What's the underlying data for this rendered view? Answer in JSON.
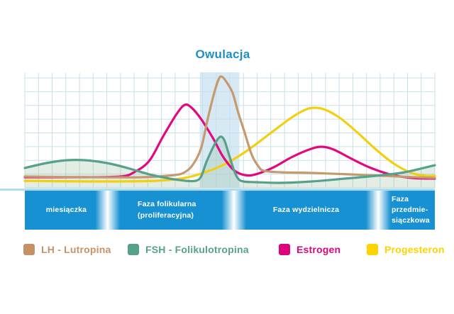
{
  "title": "Owulacja",
  "accent_blue": "#1e8ec8",
  "chart_data": {
    "type": "line",
    "title": "Owulacja",
    "xlabel": "",
    "ylabel": "",
    "x_unit": "cycle day (axis unlabeled in figure)",
    "y_unit": "relative hormone level (axis unlabeled in figure)",
    "x_range": [
      0,
      30
    ],
    "y_range": [
      0,
      100
    ],
    "grid": true,
    "grid_color": "#c8dfe8",
    "band_color": "#d8e9f6",
    "ovulation_band": {
      "x0": 12.8,
      "x1": 15.7,
      "label": "Owulacja"
    },
    "legend_position": "bottom",
    "series": [
      {
        "name": "LH - Lutropina",
        "color": "#c49a6e",
        "points": [
          [
            0,
            9.8
          ],
          [
            4.4,
            9.2
          ],
          [
            8.6,
            9.2
          ],
          [
            10.9,
            11
          ],
          [
            11.7,
            13.5
          ],
          [
            12.3,
            20.2
          ],
          [
            12.9,
            34.4
          ],
          [
            13.4,
            60.7
          ],
          [
            13.9,
            84
          ],
          [
            14.2,
            94.5
          ],
          [
            14.4,
            96.3
          ],
          [
            14.7,
            92.6
          ],
          [
            15.2,
            82.2
          ],
          [
            15.6,
            65.6
          ],
          [
            16.1,
            47.2
          ],
          [
            16.6,
            28.8
          ],
          [
            17.1,
            18.4
          ],
          [
            17.5,
            14.7
          ],
          [
            18.7,
            13.5
          ],
          [
            21,
            12.9
          ],
          [
            23.6,
            11.7
          ],
          [
            26.2,
            10.4
          ],
          [
            28.5,
            9.2
          ],
          [
            30,
            8.6
          ]
        ]
      },
      {
        "name": "FSH - Folikulotropina",
        "color": "#57a18b",
        "area_fill": true,
        "fill_color": "#8cb58a",
        "fill_opacity": 0.24,
        "points": [
          [
            0,
            17.2
          ],
          [
            1.6,
            21.5
          ],
          [
            3.1,
            23.9
          ],
          [
            4.4,
            23.9
          ],
          [
            6,
            21.5
          ],
          [
            7.5,
            17.2
          ],
          [
            9.1,
            11.7
          ],
          [
            10.6,
            8
          ],
          [
            11.8,
            6.1
          ],
          [
            12.5,
            6.1
          ],
          [
            12.9,
            9.8
          ],
          [
            13.3,
            22.7
          ],
          [
            13.9,
            38
          ],
          [
            14.3,
            44.2
          ],
          [
            14.6,
            41.1
          ],
          [
            14.9,
            30.1
          ],
          [
            15.3,
            15.3
          ],
          [
            15.6,
            8
          ],
          [
            16,
            5.5
          ],
          [
            16.9,
            4.9
          ],
          [
            18.7,
            4.3
          ],
          [
            21,
            5.5
          ],
          [
            23.4,
            8
          ],
          [
            25.7,
            10.4
          ],
          [
            27.8,
            13.5
          ],
          [
            30,
            19.6
          ]
        ]
      },
      {
        "name": "Estrogen",
        "color": "#e3087e",
        "points": [
          [
            0,
            9.2
          ],
          [
            4.4,
            9.2
          ],
          [
            7,
            9.8
          ],
          [
            8,
            13.5
          ],
          [
            9.1,
            23.3
          ],
          [
            10.1,
            44.2
          ],
          [
            11.1,
            63.8
          ],
          [
            11.7,
            71.8
          ],
          [
            12.2,
            69.3
          ],
          [
            12.9,
            59.5
          ],
          [
            13.8,
            42.3
          ],
          [
            14.5,
            27
          ],
          [
            15.3,
            15.3
          ],
          [
            16.1,
            11
          ],
          [
            16.9,
            11.7
          ],
          [
            18.2,
            17.8
          ],
          [
            19.5,
            26.4
          ],
          [
            20.8,
            33.1
          ],
          [
            21.7,
            35.6
          ],
          [
            22.6,
            33.1
          ],
          [
            23.9,
            25.2
          ],
          [
            25.2,
            17.8
          ],
          [
            26.7,
            11.7
          ],
          [
            28.3,
            8.6
          ],
          [
            30,
            8
          ]
        ]
      },
      {
        "name": "Progesteron",
        "color": "#f3cf12",
        "points": [
          [
            0,
            6.1
          ],
          [
            4.9,
            5.5
          ],
          [
            9.6,
            6.1
          ],
          [
            11.7,
            8.6
          ],
          [
            13.2,
            13.5
          ],
          [
            14.8,
            21.5
          ],
          [
            16.3,
            32.5
          ],
          [
            17.9,
            46.6
          ],
          [
            19.5,
            60.7
          ],
          [
            20.5,
            67.5
          ],
          [
            21.2,
            69.3
          ],
          [
            22,
            67.5
          ],
          [
            23.1,
            60.1
          ],
          [
            24.4,
            47.2
          ],
          [
            25.7,
            33.1
          ],
          [
            27,
            20.9
          ],
          [
            28.3,
            12.9
          ],
          [
            29.3,
            10.4
          ],
          [
            30,
            10.4
          ]
        ]
      }
    ]
  },
  "phases": {
    "bar_color": "#1791d1",
    "labels": [
      {
        "lines": [
          "miesiączka"
        ]
      },
      {
        "lines": [
          "Faza folikularna",
          "(proliferacyjna)"
        ]
      },
      {
        "lines": [
          "Faza wydzielnicza"
        ]
      },
      {
        "lines": [
          "Faza",
          "przedmie-",
          "siączkowa"
        ]
      }
    ]
  },
  "legend": {
    "items": [
      {
        "label": "LH - Lutropina",
        "color": "#c49265"
      },
      {
        "label": "FSH - Folikulotropina",
        "color": "#57a18b"
      },
      {
        "label": "Estrogen",
        "color": "#d9067c"
      },
      {
        "label": "Progesteron",
        "color": "#ffd200"
      }
    ]
  }
}
